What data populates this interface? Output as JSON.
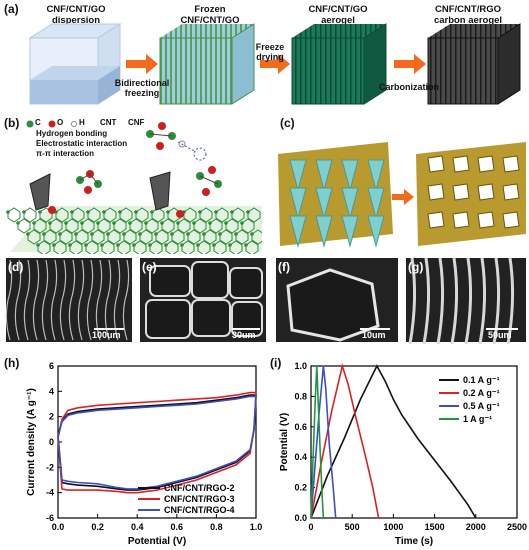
{
  "panel_a": {
    "label": "(a)",
    "stages": [
      {
        "title": "CNF/CNT/GO\ndispersion"
      },
      {
        "title": "Frozen\nCNF/CNT/GO"
      },
      {
        "title": "CNF/CNT/GO\naerogel"
      },
      {
        "title": "CNF/CNT/RGO\ncarbon aerogel"
      }
    ],
    "steps": [
      "Bidirectional\nfreezing",
      "Freeze\ndrying",
      "Carbonization"
    ]
  },
  "panel_b": {
    "label": "(b)",
    "legend_atoms": [
      "C",
      "O",
      "H",
      "CNT",
      "CNF"
    ],
    "interactions": [
      "Hydrogen bonding",
      "Electrostatic interaction",
      "π-π interaction"
    ]
  },
  "panel_c": {
    "label": "(c)"
  },
  "sem": [
    {
      "label": "(d)",
      "scale": "100um"
    },
    {
      "label": "(e)",
      "scale": "30um"
    },
    {
      "label": "(f)",
      "scale": "10um"
    },
    {
      "label": "(g)",
      "scale": "50um"
    }
  ],
  "chart_data": [
    {
      "panel": "(h)",
      "type": "line",
      "xlabel": "Potential (V)",
      "ylabel": "Current density (A g⁻¹)",
      "xlim": [
        0,
        1.0
      ],
      "ylim": [
        -6,
        6
      ],
      "xticks": [
        "0.0",
        "0.2",
        "0.4",
        "0.6",
        "0.8",
        "1.0"
      ],
      "yticks": [
        "-6",
        "-4",
        "-2",
        "0",
        "2",
        "4",
        "6"
      ],
      "legend_position": "bottom-right",
      "series": [
        {
          "name": "CNF/CNT/RGO-2",
          "color": "#111111",
          "upper": [
            [
              0.0,
              0.5
            ],
            [
              0.02,
              1.7
            ],
            [
              0.05,
              2.2
            ],
            [
              0.1,
              2.4
            ],
            [
              0.2,
              2.6
            ],
            [
              0.3,
              2.7
            ],
            [
              0.4,
              2.8
            ],
            [
              0.5,
              2.9
            ],
            [
              0.6,
              3.0
            ],
            [
              0.7,
              3.1
            ],
            [
              0.8,
              3.3
            ],
            [
              0.9,
              3.5
            ],
            [
              0.97,
              3.7
            ],
            [
              1.0,
              3.7
            ]
          ],
          "lower": [
            [
              1.0,
              3.7
            ],
            [
              0.99,
              1.0
            ],
            [
              0.97,
              -0.7
            ],
            [
              0.9,
              -1.6
            ],
            [
              0.8,
              -2.2
            ],
            [
              0.7,
              -2.8
            ],
            [
              0.6,
              -3.2
            ],
            [
              0.5,
              -3.6
            ],
            [
              0.4,
              -3.8
            ],
            [
              0.35,
              -3.8
            ],
            [
              0.3,
              -3.7
            ],
            [
              0.2,
              -3.5
            ],
            [
              0.1,
              -3.4
            ],
            [
              0.05,
              -3.3
            ],
            [
              0.02,
              -3.2
            ],
            [
              0.0,
              0.5
            ]
          ]
        },
        {
          "name": "CNF/CNT/RGO-3",
          "color": "#e02020",
          "upper": [
            [
              0.0,
              0.3
            ],
            [
              0.02,
              1.8
            ],
            [
              0.05,
              2.5
            ],
            [
              0.1,
              2.7
            ],
            [
              0.2,
              2.9
            ],
            [
              0.3,
              3.0
            ],
            [
              0.4,
              3.1
            ],
            [
              0.5,
              3.2
            ],
            [
              0.6,
              3.3
            ],
            [
              0.7,
              3.4
            ],
            [
              0.8,
              3.5
            ],
            [
              0.9,
              3.7
            ],
            [
              0.97,
              3.9
            ],
            [
              1.0,
              3.9
            ]
          ],
          "lower": [
            [
              1.0,
              3.9
            ],
            [
              0.99,
              1.0
            ],
            [
              0.97,
              -0.9
            ],
            [
              0.9,
              -1.8
            ],
            [
              0.8,
              -2.4
            ],
            [
              0.7,
              -3.0
            ],
            [
              0.6,
              -3.4
            ],
            [
              0.5,
              -3.8
            ],
            [
              0.4,
              -4.0
            ],
            [
              0.35,
              -4.0
            ],
            [
              0.3,
              -3.9
            ],
            [
              0.2,
              -3.8
            ],
            [
              0.1,
              -3.8
            ],
            [
              0.05,
              -3.8
            ],
            [
              0.02,
              -3.7
            ],
            [
              0.0,
              0.3
            ]
          ]
        },
        {
          "name": "CNF/CNT/RGO-4",
          "color": "#3a4fc8",
          "upper": [
            [
              0.0,
              0.4
            ],
            [
              0.02,
              1.6
            ],
            [
              0.05,
              2.1
            ],
            [
              0.1,
              2.3
            ],
            [
              0.2,
              2.5
            ],
            [
              0.3,
              2.6
            ],
            [
              0.4,
              2.7
            ],
            [
              0.5,
              2.8
            ],
            [
              0.6,
              2.9
            ],
            [
              0.7,
              3.0
            ],
            [
              0.8,
              3.2
            ],
            [
              0.9,
              3.4
            ],
            [
              0.97,
              3.6
            ],
            [
              1.0,
              3.6
            ]
          ],
          "lower": [
            [
              1.0,
              3.6
            ],
            [
              0.99,
              0.9
            ],
            [
              0.97,
              -0.6
            ],
            [
              0.9,
              -1.5
            ],
            [
              0.8,
              -2.1
            ],
            [
              0.7,
              -2.7
            ],
            [
              0.6,
              -3.1
            ],
            [
              0.5,
              -3.5
            ],
            [
              0.4,
              -3.7
            ],
            [
              0.35,
              -3.7
            ],
            [
              0.3,
              -3.6
            ],
            [
              0.2,
              -3.3
            ],
            [
              0.1,
              -3.2
            ],
            [
              0.05,
              -3.1
            ],
            [
              0.02,
              -3.0
            ],
            [
              0.0,
              0.4
            ]
          ]
        }
      ]
    },
    {
      "panel": "(i)",
      "type": "line",
      "xlabel": "Time (s)",
      "ylabel": "Potential (V)",
      "xlim": [
        0,
        2500
      ],
      "ylim": [
        0,
        1.0
      ],
      "xticks": [
        "0",
        "500",
        "1000",
        "1500",
        "2000",
        "2500"
      ],
      "yticks": [
        "0.0",
        "0.2",
        "0.4",
        "0.6",
        "0.8",
        "1.0"
      ],
      "legend_position": "top-right",
      "series": [
        {
          "name": "0.1 A g⁻¹",
          "color": "#111111",
          "points": [
            [
              0,
              0
            ],
            [
              200,
              0.28
            ],
            [
              400,
              0.52
            ],
            [
              600,
              0.78
            ],
            [
              800,
              1.0
            ],
            [
              900,
              0.9
            ],
            [
              1000,
              0.78
            ],
            [
              1100,
              0.68
            ],
            [
              1300,
              0.52
            ],
            [
              1500,
              0.38
            ],
            [
              1700,
              0.24
            ],
            [
              1900,
              0.09
            ],
            [
              2000,
              0
            ]
          ]
        },
        {
          "name": "0.2 A g⁻¹",
          "color": "#e02020",
          "points": [
            [
              0,
              0
            ],
            [
              120,
              0.35
            ],
            [
              250,
              0.7
            ],
            [
              380,
              1.0
            ],
            [
              450,
              0.88
            ],
            [
              550,
              0.65
            ],
            [
              650,
              0.43
            ],
            [
              750,
              0.2
            ],
            [
              820,
              0
            ]
          ]
        },
        {
          "name": "0.5 A g⁻¹",
          "color": "#3a4fc8",
          "points": [
            [
              0,
              0
            ],
            [
              50,
              0.35
            ],
            [
              100,
              0.7
            ],
            [
              150,
              1.0
            ],
            [
              180,
              0.85
            ],
            [
              220,
              0.5
            ],
            [
              270,
              0.2
            ],
            [
              300,
              0
            ]
          ]
        },
        {
          "name": "1 A g⁻¹",
          "color": "#1a9a3a",
          "points": [
            [
              0,
              0
            ],
            [
              25,
              0.4
            ],
            [
              50,
              0.75
            ],
            [
              70,
              1.0
            ],
            [
              85,
              0.8
            ],
            [
              110,
              0.45
            ],
            [
              135,
              0.15
            ],
            [
              150,
              0
            ]
          ]
        }
      ]
    }
  ]
}
